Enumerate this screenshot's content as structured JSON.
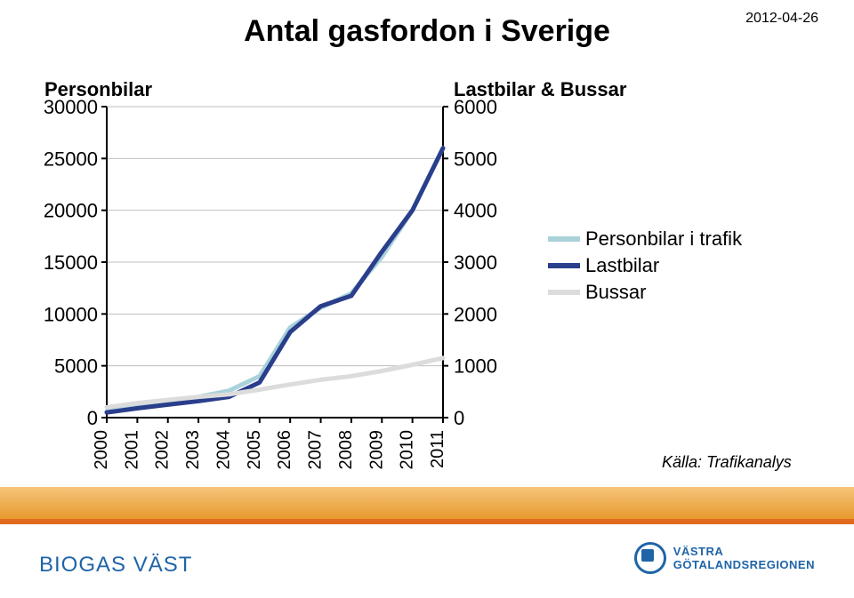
{
  "meta": {
    "date": "2012-04-26"
  },
  "title": "Antal gasfordon i Sverige",
  "source": "Källa: Trafikanalys",
  "brand": "BIOGAS VÄST",
  "logo_text": "VÄSTRA\nGÖTALANDSREGIONEN",
  "chart": {
    "type": "line",
    "background_color": "#ffffff",
    "grid_color": "#bfbfbf",
    "axis_color": "#000000",
    "categories": [
      "2000",
      "2001",
      "2002",
      "2003",
      "2004",
      "2005",
      "2006",
      "2007",
      "2008",
      "2009",
      "2010",
      "2011"
    ],
    "left_axis": {
      "title": "Personbilar",
      "min": 0,
      "max": 30000,
      "tick_step": 5000,
      "ticks": [
        0,
        5000,
        10000,
        15000,
        20000,
        25000,
        30000
      ],
      "title_fontsize": 22,
      "label_fontsize": 22
    },
    "right_axis": {
      "title": "Lastbilar & Bussar",
      "min": 0,
      "max": 6000,
      "tick_step": 1000,
      "ticks": [
        0,
        1000,
        2000,
        3000,
        4000,
        5000,
        6000
      ],
      "title_fontsize": 22,
      "label_fontsize": 22
    },
    "series": [
      {
        "name": "Personbilar i trafik",
        "axis": "left",
        "values": [
          600,
          1050,
          1500,
          2000,
          2600,
          4000,
          8700,
          10600,
          12000,
          15500,
          20000,
          26000
        ],
        "color": "#a9d2da",
        "line_width": 5,
        "dash": "none"
      },
      {
        "name": "Lastbilar",
        "axis": "right",
        "values": [
          100,
          180,
          250,
          320,
          400,
          680,
          1650,
          2150,
          2350,
          3200,
          4000,
          5200
        ],
        "color": "#2a3e8c",
        "line_width": 5,
        "dash": "none"
      },
      {
        "name": "Bussar",
        "axis": "right",
        "values": [
          200,
          280,
          340,
          400,
          450,
          540,
          640,
          730,
          800,
          900,
          1020,
          1150
        ],
        "color": "#dcdcdc",
        "line_width": 5,
        "dash": "none"
      }
    ],
    "legend": {
      "position": "right",
      "fontsize": 22
    },
    "line_style": {
      "marker": "none"
    }
  }
}
